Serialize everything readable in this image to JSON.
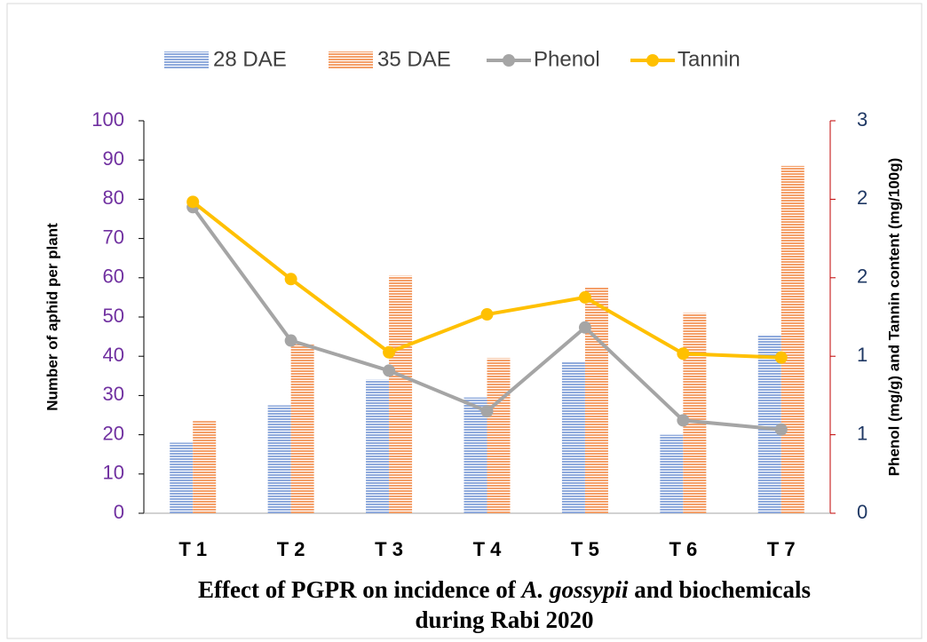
{
  "chart_data": {
    "type": "bar-line",
    "title": {
      "lines": [
        [
          "Effect of PGPR on incidence of ",
          "A. gossypii",
          " and biochemicals"
        ],
        [
          "during Rabi 2020"
        ]
      ]
    },
    "ylabel": "Number of aphid per plant",
    "y2label": "Phenol (mg/g) and Tannin content (mg/100g)",
    "categories": [
      "T 1",
      "T 2",
      "T 3",
      "T 4",
      "T 5",
      "T 6",
      "T 7"
    ],
    "series": [
      {
        "name": "28 DAE",
        "kind": "bar",
        "color": "#8faadc",
        "values": [
          18,
          27.5,
          34,
          29.5,
          38.5,
          20,
          45.5
        ]
      },
      {
        "name": "35 DAE",
        "kind": "bar",
        "color": "#f4a06a",
        "values": [
          23.5,
          43,
          60.5,
          39.5,
          57.5,
          51,
          88.5
        ]
      },
      {
        "name": "Phenol",
        "kind": "line",
        "axis": "y2",
        "color": "#a5a5a5",
        "values": [
          2.34,
          1.32,
          1.09,
          0.78,
          1.42,
          0.71,
          0.64
        ]
      },
      {
        "name": "Tannin",
        "kind": "line",
        "axis": "y2",
        "color": "#ffc000",
        "values": [
          2.38,
          1.79,
          1.23,
          1.52,
          1.65,
          1.22,
          1.19
        ]
      }
    ],
    "ylim": [
      0,
      100
    ],
    "yticks": [
      0,
      10,
      20,
      30,
      40,
      50,
      60,
      70,
      80,
      90,
      100
    ],
    "y2lim": [
      0,
      3
    ],
    "y2ticks": [
      0,
      {
        "value": 0.6,
        "label": "1"
      },
      {
        "value": 1.2,
        "label": "1"
      },
      {
        "value": 1.8,
        "label": "2"
      },
      {
        "value": 2.4,
        "label": "2"
      },
      3
    ],
    "legend": "top"
  }
}
